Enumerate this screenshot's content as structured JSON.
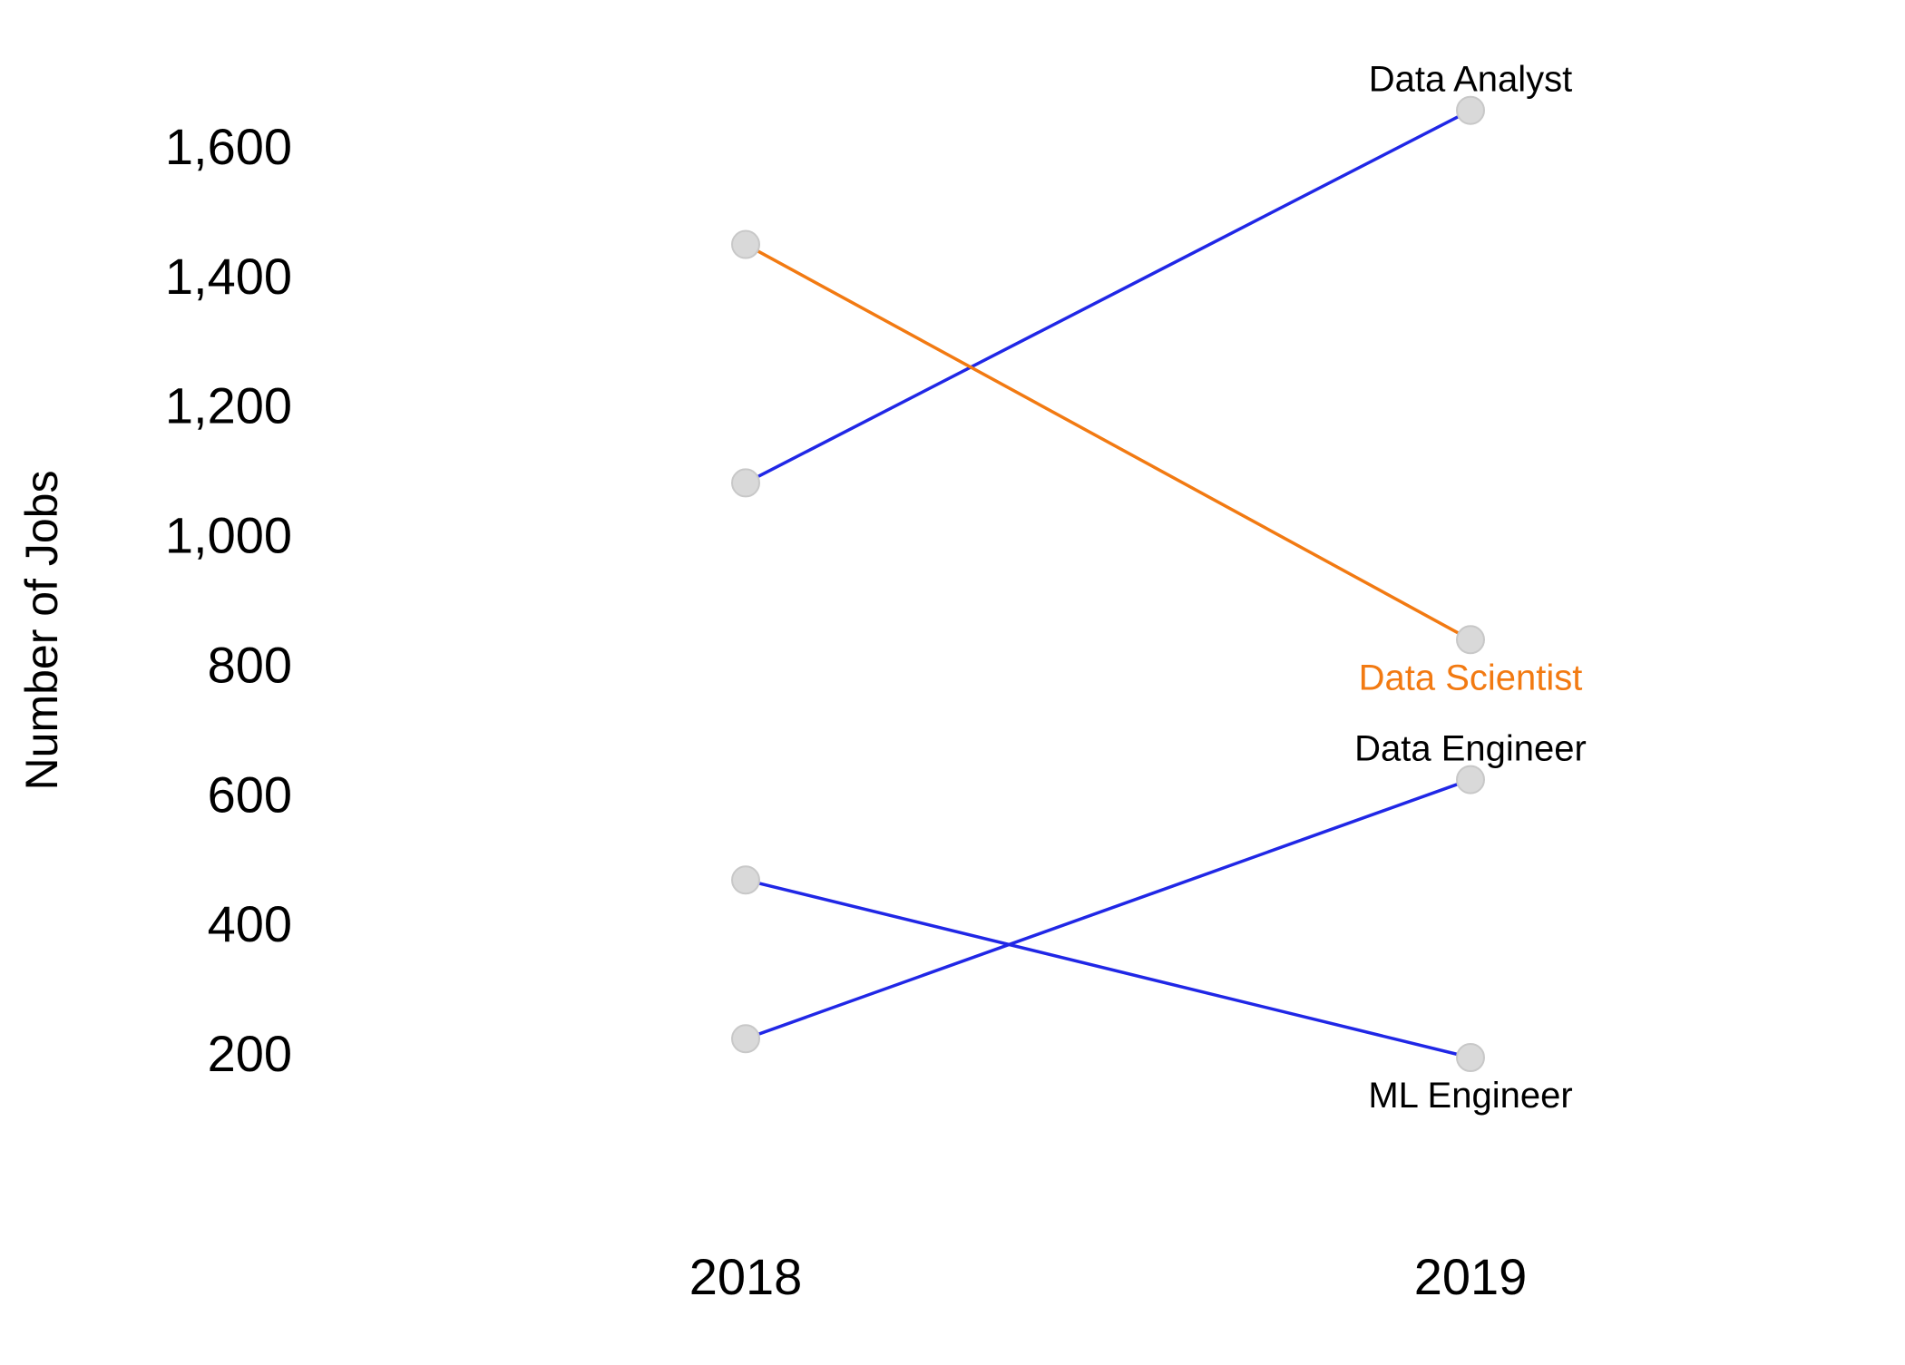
{
  "chart_data": {
    "type": "line",
    "title": "",
    "xlabel": "",
    "ylabel": "Number of Jobs",
    "x": [
      "2018",
      "2019"
    ],
    "ylim": [
      0,
      1700
    ],
    "yticks": [
      200,
      400,
      600,
      800,
      1000,
      1200,
      1400,
      1600
    ],
    "ytick_labels": [
      "200",
      "400",
      "600",
      "800",
      "1,000",
      "1,200",
      "1,400",
      "1,600"
    ],
    "grid": false,
    "legend": "none",
    "marker_color": "#d9d9d9",
    "series": [
      {
        "name": "Data Analyst",
        "values": [
          1080,
          1655
        ],
        "color": "#2027e6",
        "label_color": "#000000",
        "label_position": "above"
      },
      {
        "name": "Data Scientist",
        "values": [
          1448,
          838
        ],
        "color": "#f27a12",
        "label_color": "#f27a12",
        "label_position": "below"
      },
      {
        "name": "Data Engineer",
        "values": [
          222,
          622
        ],
        "color": "#2027e6",
        "label_color": "#000000",
        "label_position": "above"
      },
      {
        "name": "ML Engineer",
        "values": [
          467,
          193
        ],
        "color": "#2027e6",
        "label_color": "#000000",
        "label_position": "below"
      }
    ]
  }
}
